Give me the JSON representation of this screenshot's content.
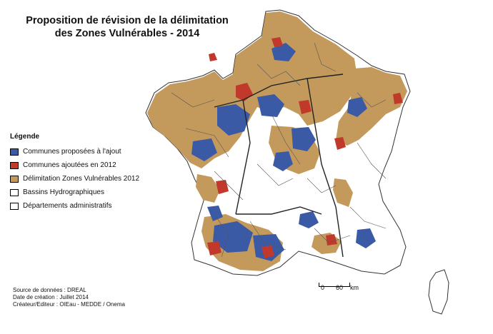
{
  "title": "Proposition de révision de la délimitation des Zones Vulnérables - 2014",
  "legend": {
    "heading": "Légende",
    "items": [
      {
        "label": "Communes proposées à l'ajout",
        "color": "#3a5aa6"
      },
      {
        "label": "Communes ajoutées en 2012",
        "color": "#c0392b"
      },
      {
        "label": "Délimitation Zones Vulnérables 2012",
        "color": "#c39a5c"
      },
      {
        "label": "Bassins Hydrographiques",
        "color": "#ffffff"
      },
      {
        "label": "Départements administratifs",
        "color": "#ffffff"
      }
    ]
  },
  "source": {
    "line1": "Source de données : DREAL",
    "line2": "Date de création : Juillet 2014",
    "line3": "Créateur/Editeur : OIEau - MEDDE / Onema"
  },
  "scale": {
    "zero": "0",
    "value": "60",
    "unit": "km"
  },
  "colors": {
    "vulnerable": "#c39a5c",
    "proposed": "#3a5aa6",
    "added2012": "#c0392b",
    "border": "#333333"
  }
}
